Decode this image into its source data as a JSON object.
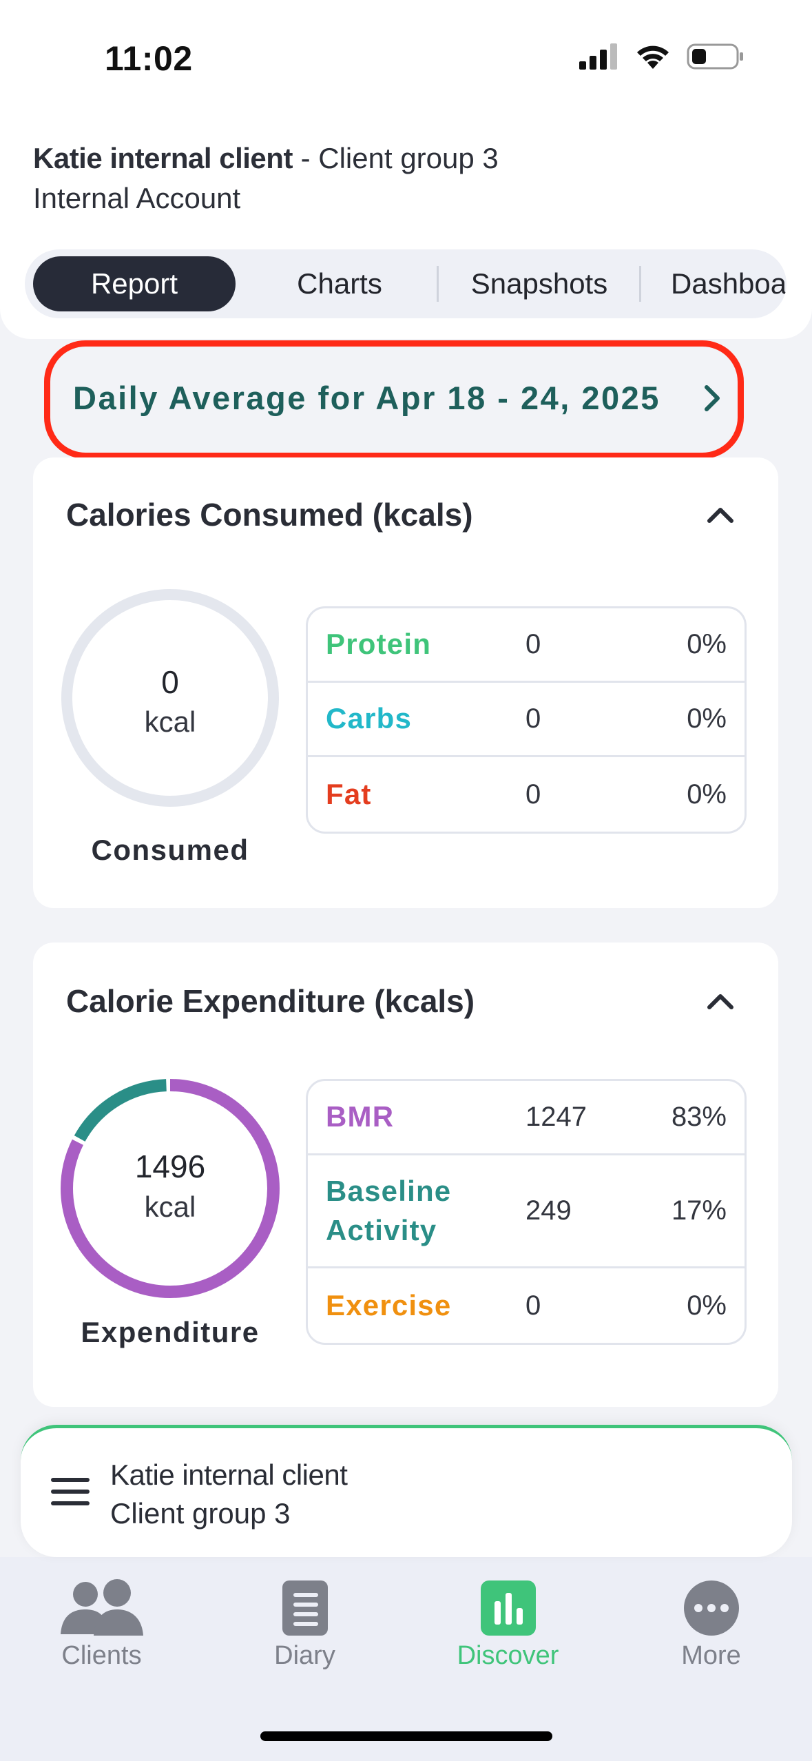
{
  "status": {
    "time": "11:02"
  },
  "client": {
    "name": "Katie internal client",
    "separator": " - ",
    "group": "Client group 3",
    "account": "Internal Account"
  },
  "tabs": [
    {
      "label": "Report",
      "active": true
    },
    {
      "label": "Charts",
      "active": false
    },
    {
      "label": "Snapshots",
      "active": false
    },
    {
      "label": "Dashboa",
      "active": false
    }
  ],
  "date_range": {
    "label": "Daily Average for Apr 18 - 24, 2025"
  },
  "calories_consumed": {
    "title": "Calories Consumed (kcals)",
    "value": "0",
    "unit": "kcal",
    "caption": "Consumed",
    "ring_color": "#e4e7ee",
    "rows": [
      {
        "name": "Protein",
        "value": "0",
        "pct": "0%",
        "color": "#3fc47a"
      },
      {
        "name": "Carbs",
        "value": "0",
        "pct": "0%",
        "color": "#22b8c9"
      },
      {
        "name": "Fat",
        "value": "0",
        "pct": "0%",
        "color": "#e43d1f"
      }
    ]
  },
  "calorie_expenditure": {
    "title": "Calorie Expenditure (kcals)",
    "value": "1496",
    "unit": "kcal",
    "caption": "Expenditure",
    "segments": [
      {
        "name": "BMR",
        "fraction": 0.83,
        "color": "#a95ec4"
      },
      {
        "name": "Baseline Activity",
        "fraction": 0.17,
        "color": "#2a8e87"
      },
      {
        "name": "Exercise",
        "fraction": 0.0,
        "color": "#f0900f"
      }
    ],
    "rows": [
      {
        "name": "BMR",
        "value": "1247",
        "pct": "83%",
        "color": "#a95ec4"
      },
      {
        "name": "Baseline Activity",
        "value": "249",
        "pct": "17%",
        "color": "#2a8e87"
      },
      {
        "name": "Exercise",
        "value": "0",
        "pct": "0%",
        "color": "#f0900f"
      }
    ]
  },
  "client_bar": {
    "name": "Katie internal client",
    "group": "Client group 3"
  },
  "tabbar": [
    {
      "label": "Clients",
      "icon": "people-icon",
      "active": false
    },
    {
      "label": "Diary",
      "icon": "notebook-icon",
      "active": false
    },
    {
      "label": "Discover",
      "icon": "bar-chart-icon",
      "active": true
    },
    {
      "label": "More",
      "icon": "more-dots-icon",
      "active": false
    }
  ],
  "colors": {
    "accent": "#3fc47a",
    "highlight": "#ff2a17",
    "date_text": "#1e5f5b",
    "active_tab_bg": "#272b38"
  }
}
